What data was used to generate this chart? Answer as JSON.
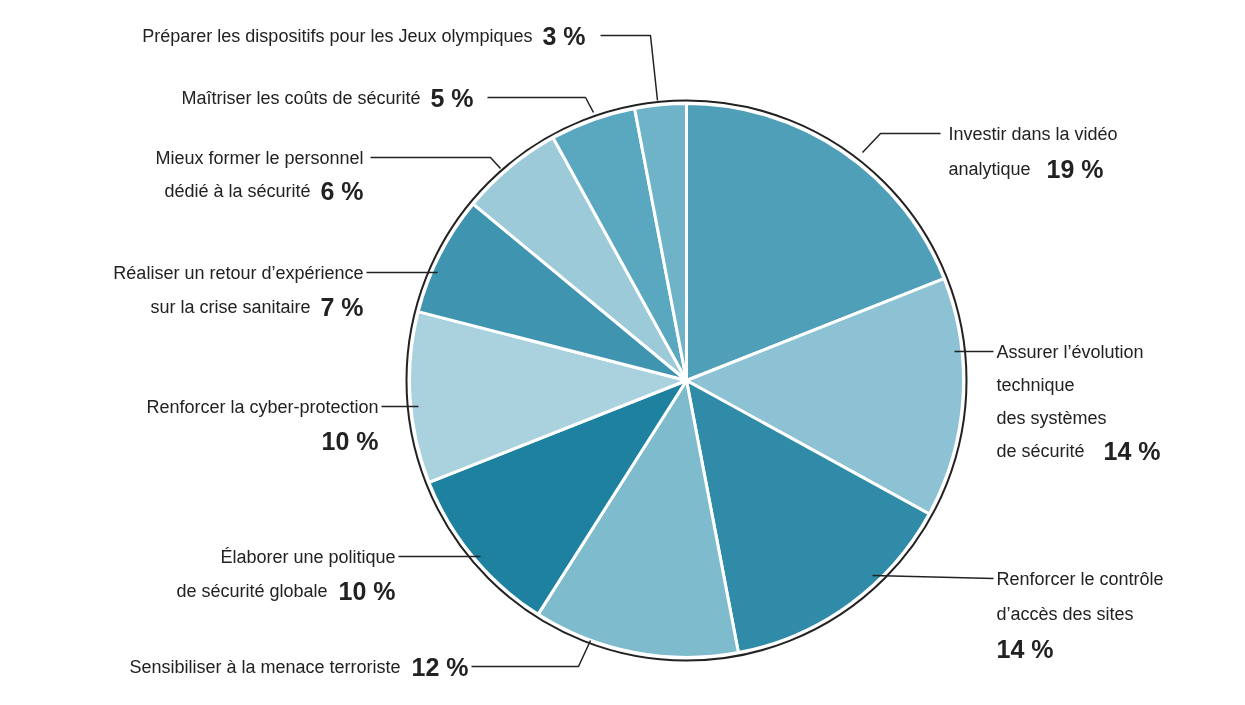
{
  "chart_data": {
    "type": "pie",
    "categories": [
      "Investir dans la vidéo\nanalytique",
      "Assurer l’évolution\ntechnique\ndes systèmes\nde sécurité",
      "Renforcer le contrôle\nd’accès des sites",
      "Sensibiliser à la menace terroriste",
      "Élaborer une politique\nde sécurité globale",
      "Renforcer la cyber-protection",
      "Réaliser un retour d’expérience\nsur la crise sanitaire",
      "Mieux former le personnel\ndédié à la sécurité",
      "Maîtriser les coûts de sécurité",
      "Préparer les dispositifs pour les Jeux olympiques"
    ],
    "values": [
      19,
      14,
      14,
      12,
      10,
      10,
      7,
      6,
      5,
      3
    ],
    "colors": [
      "#4f9fb8",
      "#8cc2d3",
      "#2f8ba8",
      "#7ebbcd",
      "#1f81a0",
      "#aad2de",
      "#3f95b0",
      "#9ccad8",
      "#5aa8c0",
      "#6fb3c8"
    ],
    "value_labels": [
      "19 %",
      "14 %",
      "14 %",
      "12 %",
      "10 %",
      "10 %",
      "7 %",
      "6 %",
      "5 %",
      "3 %"
    ]
  }
}
